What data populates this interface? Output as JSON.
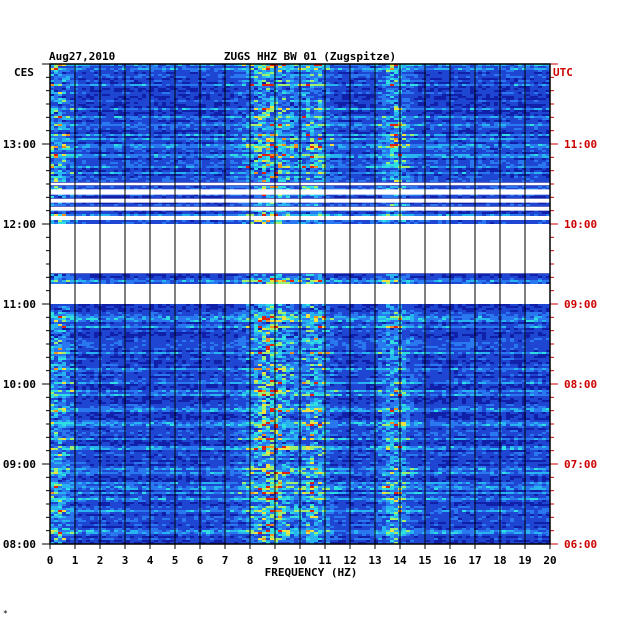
{
  "header": {
    "date": "Aug27,2010",
    "station": "ZUGS HHZ BW 01 (Zugspitze)",
    "left_zone": "CES",
    "right_zone": "UTC"
  },
  "footer_mark": "*",
  "colors": {
    "left_axis": "#000000",
    "right_axis": "#cc0000",
    "background_band": "#1020a8",
    "grid": "#000000"
  },
  "chart_data": {
    "type": "heatmap",
    "title": "ZUGS HHZ BW 01 (Zugspitze)",
    "date": "Aug27,2010",
    "xlabel": "FREQUENCY (HZ)",
    "x_ticks": [
      "0",
      "1",
      "2",
      "3",
      "4",
      "5",
      "6",
      "7",
      "8",
      "9",
      "10",
      "11",
      "12",
      "13",
      "14",
      "15",
      "16",
      "17",
      "18",
      "19",
      "20"
    ],
    "xlim": [
      0,
      20
    ],
    "left_ticks": [
      "13:00",
      "12:00",
      "11:00",
      "10:00",
      "09:00",
      "08:00"
    ],
    "right_ticks": [
      "11:00",
      "10:00",
      "09:00",
      "08:00",
      "07:00",
      "06:00"
    ],
    "left_time_range": [
      "08:00",
      "14:00"
    ],
    "right_time_range": [
      "06:00",
      "12:00"
    ],
    "color_scale": "blue-cyan-yellow-red",
    "gaps_cet": [
      {
        "from": "11:00",
        "to": "11:15"
      },
      {
        "from": "11:23",
        "to": "12:00"
      },
      {
        "from": "12:03",
        "to": "12:06"
      },
      {
        "from": "12:10",
        "to": "12:13"
      },
      {
        "from": "12:16",
        "to": "12:19"
      },
      {
        "from": "12:22",
        "to": "12:26"
      },
      {
        "from": "12:29",
        "to": "12:31"
      }
    ],
    "energy_bands_hz": [
      0.3,
      8.8,
      10.6,
      13.8
    ]
  }
}
